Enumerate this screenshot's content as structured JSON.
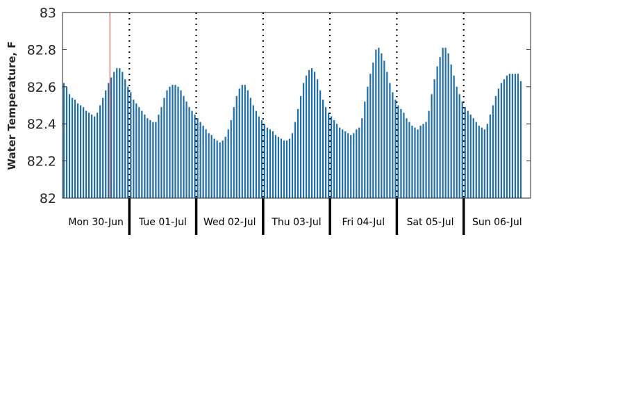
{
  "chart_data": {
    "type": "bar",
    "title": "",
    "xlabel": "",
    "ylabel": "Water Temperature, F",
    "ylim": [
      82,
      83
    ],
    "yticks": [
      "82",
      "82.2",
      "82.4",
      "82.6",
      "82.8",
      "83"
    ],
    "day_labels": [
      "Mon 30-Jun",
      "Tue 01-Jul",
      "Wed 02-Jul",
      "Thu 03-Jul",
      "Fri 04-Jul",
      "Sat 05-Jul",
      "Sun 06-Jul"
    ],
    "x_range_hours": [
      0,
      168
    ],
    "day_starts_hours": [
      0,
      24,
      48,
      72,
      96,
      120,
      144
    ],
    "current_time_hour": 17,
    "bar_interval_hours": 1,
    "series": [
      {
        "values": [
          82.62,
          82.6,
          82.56,
          82.54,
          82.53,
          82.51,
          82.5,
          82.49,
          82.47,
          82.46,
          82.45,
          82.44,
          82.46,
          82.5,
          82.54,
          82.58,
          82.62,
          82.65,
          82.68,
          82.7,
          82.7,
          82.68,
          82.64,
          82.6,
          82.57,
          82.53,
          82.51,
          82.49,
          82.47,
          82.45,
          82.43,
          82.42,
          82.41,
          82.41,
          82.45,
          82.49,
          82.54,
          82.58,
          82.6,
          82.61,
          82.61,
          82.6,
          82.58,
          82.55,
          82.52,
          82.49,
          82.47,
          82.45,
          82.43,
          82.41,
          82.39,
          82.37,
          82.35,
          82.34,
          82.32,
          82.31,
          82.3,
          82.31,
          82.33,
          82.37,
          82.42,
          82.49,
          82.55,
          82.59,
          82.61,
          82.61,
          82.58,
          82.54,
          82.5,
          82.47,
          82.44,
          82.42,
          82.4,
          82.38,
          82.37,
          82.36,
          82.34,
          82.33,
          82.32,
          82.31,
          82.31,
          82.32,
          82.35,
          82.41,
          82.48,
          82.55,
          82.62,
          82.66,
          82.69,
          82.7,
          82.68,
          82.64,
          82.58,
          82.53,
          82.49,
          82.46,
          82.44,
          82.42,
          82.4,
          82.38,
          82.37,
          82.36,
          82.35,
          82.34,
          82.35,
          82.37,
          82.38,
          82.43,
          82.52,
          82.6,
          82.67,
          82.73,
          82.8,
          82.81,
          82.78,
          82.74,
          82.68,
          82.62,
          82.57,
          82.53,
          82.5,
          82.48,
          82.46,
          82.43,
          82.41,
          82.39,
          82.38,
          82.37,
          82.39,
          82.4,
          82.41,
          82.47,
          82.56,
          82.64,
          82.71,
          82.76,
          82.81,
          82.81,
          82.78,
          82.72,
          82.66,
          82.6,
          82.56,
          82.52,
          82.49,
          82.47,
          82.45,
          82.43,
          82.41,
          82.39,
          82.38,
          82.37,
          82.4,
          82.45,
          82.5,
          82.55,
          82.59,
          82.62,
          82.64,
          82.66,
          82.67,
          82.67,
          82.67,
          82.67,
          82.63
        ]
      }
    ],
    "colors": {
      "bar": "#1f6eac",
      "current_time_line": "#e8423a",
      "day_separator": "#000000"
    },
    "grid": false
  }
}
